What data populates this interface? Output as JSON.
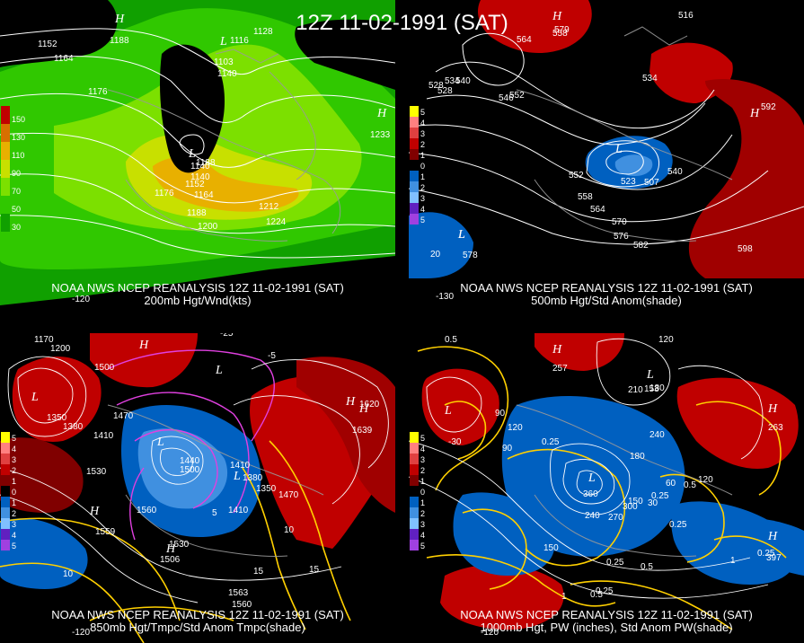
{
  "main_title": "12Z 11-02-1991 (SAT)",
  "panels": [
    {
      "id": "p200",
      "title_line1": "NOAA NWS NCEP REANALYSIS 12Z 11-02-1991 (SAT)",
      "title_line2": "200mb Hgt/Wnd(kts)",
      "colorbar": [
        {
          "color": "#c00000",
          "label": "150"
        },
        {
          "color": "#d87000",
          "label": "130"
        },
        {
          "color": "#e8b000",
          "label": "110"
        },
        {
          "color": "#c8e000",
          "label": "90"
        },
        {
          "color": "#7ce000",
          "label": "70"
        },
        {
          "color": "#30c800",
          "label": "50"
        },
        {
          "color": "#10a000",
          "label": "30"
        }
      ],
      "contour_labels": [
        "1152",
        "1164",
        "1176",
        "1188",
        "1116",
        "1128",
        "1140",
        "1140",
        "1152",
        "1164",
        "1176",
        "1188",
        "1200",
        "1212",
        "1224"
      ],
      "highs": [
        "H",
        "H"
      ],
      "lows": [
        "L",
        "L"
      ],
      "center_values": [
        "1188",
        "1103",
        "1233",
        "1140"
      ],
      "lon_label": "-120"
    },
    {
      "id": "p500",
      "title_line1": "NOAA NWS NCEP REANALYSIS 12Z 11-02-1991 (SAT)",
      "title_line2": "500mb Hgt/Std Anom(shade)",
      "colorbar": [
        {
          "color": "#ffff00",
          "label": "5"
        },
        {
          "color": "#ff8080",
          "label": "4"
        },
        {
          "color": "#e04040",
          "label": "3"
        },
        {
          "color": "#c00000",
          "label": "2"
        },
        {
          "color": "#800000",
          "label": "1"
        },
        {
          "color": "#000000",
          "label": "0"
        },
        {
          "color": "#0060c0",
          "label": "1"
        },
        {
          "color": "#4090e0",
          "label": "2"
        },
        {
          "color": "#80c0ff",
          "label": "3"
        },
        {
          "color": "#6020c0",
          "label": "4"
        },
        {
          "color": "#a040e0",
          "label": "5"
        }
      ],
      "contour_labels": [
        "516",
        "528",
        "534",
        "540",
        "546",
        "552",
        "552",
        "558",
        "564",
        "570",
        "576",
        "582",
        "564",
        "558",
        "534",
        "528",
        "540",
        "20"
      ],
      "highs": [
        "H",
        "H"
      ],
      "lows": [
        "L",
        "L",
        "L"
      ],
      "center_values": [
        "579",
        "592",
        "598",
        "578",
        "523",
        "507"
      ],
      "lon_label": "-130"
    },
    {
      "id": "p850",
      "title_line1": "NOAA NWS NCEP REANALYSIS 12Z 11-02-1991 (SAT)",
      "title_line2": "850mb Hgt/Tmpc/Std Anom Tmpc(shade)",
      "colorbar": [
        {
          "color": "#ffff00",
          "label": "5"
        },
        {
          "color": "#ff8080",
          "label": "4"
        },
        {
          "color": "#e04040",
          "label": "3"
        },
        {
          "color": "#c00000",
          "label": "2"
        },
        {
          "color": "#800000",
          "label": "1"
        },
        {
          "color": "#000000",
          "label": "0"
        },
        {
          "color": "#0060c0",
          "label": "1"
        },
        {
          "color": "#4090e0",
          "label": "2"
        },
        {
          "color": "#80c0ff",
          "label": "3"
        },
        {
          "color": "#6020c0",
          "label": "4"
        },
        {
          "color": "#a040e0",
          "label": "5"
        }
      ],
      "contour_labels": [
        "1170",
        "1200",
        "1500",
        "1350",
        "1380",
        "1410",
        "1470",
        "1530",
        "1440",
        "1500",
        "1560",
        "1410",
        "1380",
        "1350",
        "1470",
        "1620",
        "1410",
        "-25",
        "-5",
        "10",
        "15",
        "15",
        "5",
        "10",
        "1560",
        "1530"
      ],
      "highs": [
        "H",
        "H",
        "H",
        "H",
        "H"
      ],
      "lows": [
        "L",
        "L",
        "L",
        "L"
      ],
      "center_values": [
        "1639",
        "1559",
        "1506",
        "1563"
      ],
      "lon_label": "-120"
    },
    {
      "id": "p1000",
      "title_line1": "NOAA NWS NCEP REANALYSIS 12Z 11-02-1991 (SAT)",
      "title_line2": "1000mb Hgt, PW (inches), Std Anom PW(shade)",
      "colorbar": [
        {
          "color": "#ffff00",
          "label": "5"
        },
        {
          "color": "#ff8080",
          "label": "4"
        },
        {
          "color": "#e04040",
          "label": "3"
        },
        {
          "color": "#c00000",
          "label": "2"
        },
        {
          "color": "#800000",
          "label": "1"
        },
        {
          "color": "#000000",
          "label": "0"
        },
        {
          "color": "#0060c0",
          "label": "1"
        },
        {
          "color": "#4090e0",
          "label": "2"
        },
        {
          "color": "#80c0ff",
          "label": "3"
        },
        {
          "color": "#6020c0",
          "label": "4"
        },
        {
          "color": "#a040e0",
          "label": "5"
        }
      ],
      "contour_labels": [
        "0.5",
        "120",
        "210",
        "180",
        "240",
        "150",
        "-30",
        "90",
        "120",
        "0.25",
        "180",
        "0.25",
        "90",
        "30",
        "120",
        "360",
        "240",
        "270",
        "150",
        "0.25",
        "0.25",
        "0.5",
        "1",
        "0.5",
        "0.25",
        "60",
        "0.5",
        "0.25",
        "1",
        "300"
      ],
      "highs": [
        "H",
        "H",
        "H"
      ],
      "lows": [
        "L",
        "L",
        "L"
      ],
      "center_values": [
        "257",
        "153",
        "263",
        "397"
      ],
      "lon_label": "-120"
    }
  ]
}
